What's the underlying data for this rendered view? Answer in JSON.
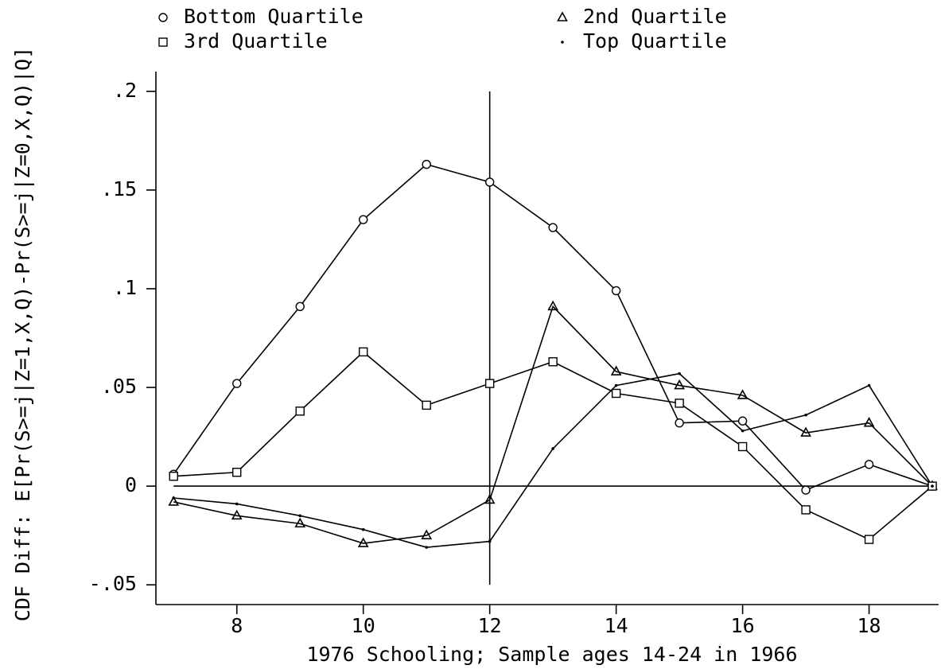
{
  "chart_data": {
    "type": "line",
    "x_label": "1976 Schooling; Sample ages 14-24 in 1966",
    "y_label": "CDF Diff: E[Pr(S>=j|Z=1,X,Q)-Pr(S>=j|Z=0,X,Q)|Q]",
    "x": [
      7,
      8,
      9,
      10,
      11,
      12,
      13,
      14,
      15,
      16,
      17,
      18,
      19
    ],
    "series": [
      {
        "name": "Bottom Quartile",
        "color": "#000000",
        "marker": "circle",
        "values": [
          0.006,
          0.052,
          0.091,
          0.135,
          0.163,
          0.154,
          0.131,
          0.099,
          0.032,
          0.033,
          -0.002,
          0.011,
          0
        ]
      },
      {
        "name": "2nd Quartile",
        "color": "#000000",
        "marker": "triangle",
        "values": [
          -0.008,
          -0.015,
          -0.019,
          -0.029,
          -0.025,
          -0.007,
          0.091,
          0.058,
          0.051,
          0.046,
          0.027,
          0.032,
          0
        ]
      },
      {
        "name": "3rd Quartile",
        "color": "#000000",
        "marker": "square",
        "values": [
          0.005,
          0.007,
          0.038,
          0.068,
          0.041,
          0.052,
          0.063,
          0.047,
          0.042,
          0.02,
          -0.012,
          -0.027,
          0
        ]
      },
      {
        "name": "Top Quartile",
        "color": "#000000",
        "marker": "dot",
        "values": [
          -0.006,
          -0.009,
          -0.015,
          -0.022,
          -0.031,
          -0.028,
          0.019,
          0.051,
          0.057,
          0.028,
          0.036,
          0.051,
          0
        ]
      }
    ],
    "xlim": [
      6.72,
      19.1
    ],
    "ylim": [
      -0.06,
      0.21
    ],
    "xticks": [
      8,
      10,
      12,
      14,
      16,
      18
    ],
    "yticks": [
      {
        "value": 0.2,
        "label": ".2"
      },
      {
        "value": 0.15,
        "label": ".15"
      },
      {
        "value": 0.1,
        "label": ".1"
      },
      {
        "value": 0.05,
        "label": ".05"
      },
      0,
      {
        "value": -0.05,
        "label": "-.05"
      }
    ],
    "xline": 12,
    "yline": 0,
    "legend": "top",
    "grid": false
  }
}
